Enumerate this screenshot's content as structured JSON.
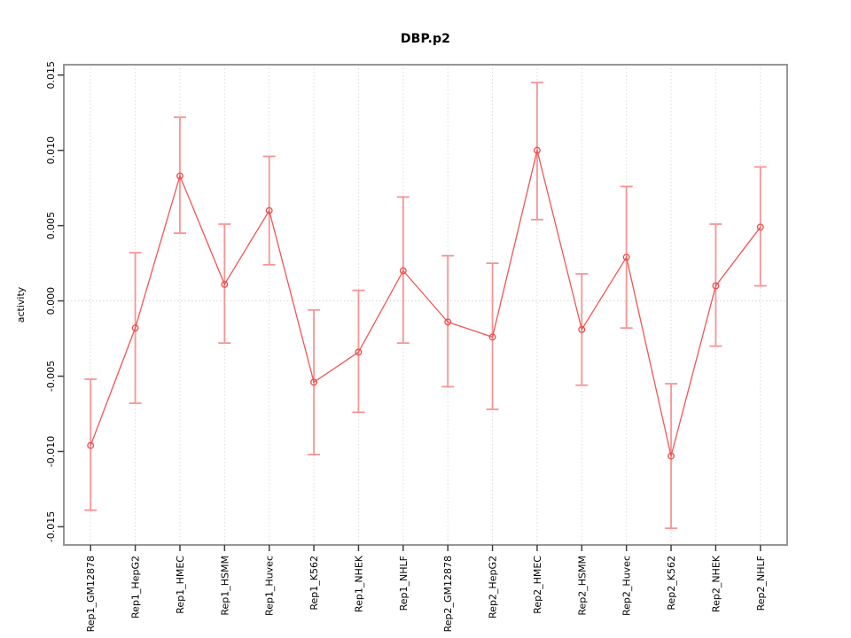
{
  "chart_data": {
    "type": "line",
    "title": "DBP.p2",
    "xlabel": "",
    "ylabel": "activity",
    "legend": "none",
    "grid": "vertical dotted gridline at each category; dotted horizontal line at y=0",
    "categories": [
      "Rep1_GM12878",
      "Rep1_HepG2",
      "Rep1_HMEC",
      "Rep1_HSMM",
      "Rep1_Huvec",
      "Rep1_K562",
      "Rep1_NHEK",
      "Rep1_NHLF",
      "Rep2_GM12878",
      "Rep2_HepG2",
      "Rep2_HMEC",
      "Rep2_HSMM",
      "Rep2_Huvec",
      "Rep2_K562",
      "Rep2_NHEK",
      "Rep2_NHLF"
    ],
    "series": [
      {
        "name": "activity",
        "values": [
          -0.0096,
          -0.0018,
          0.0083,
          0.0011,
          0.006,
          -0.0054,
          -0.0034,
          0.002,
          -0.0014,
          -0.0024,
          0.01,
          -0.0019,
          0.0029,
          -0.0103,
          0.001,
          0.0049
        ],
        "error_low": [
          -0.0139,
          -0.0068,
          0.0045,
          -0.0028,
          0.0024,
          -0.0102,
          -0.0074,
          -0.0028,
          -0.0057,
          -0.0072,
          0.0054,
          -0.0056,
          -0.0018,
          -0.0151,
          -0.003,
          0.001
        ],
        "error_high": [
          -0.0052,
          0.0032,
          0.0122,
          0.0051,
          0.0096,
          -0.0006,
          0.0007,
          0.0069,
          0.003,
          0.0025,
          0.0145,
          0.0018,
          0.0076,
          -0.0055,
          0.0051,
          0.0089
        ]
      }
    ],
    "ylim": [
      -0.01621,
      0.01569
    ],
    "yticks": [
      -0.015,
      -0.01,
      -0.005,
      0.0,
      0.005,
      0.01,
      0.015
    ],
    "ytick_labels": [
      "-0.015",
      "-0.010",
      "-0.005",
      "0.000",
      "0.005",
      "0.010",
      "0.015"
    ]
  },
  "colors": {
    "line": "#f25555",
    "error_bar": "#f79494",
    "point_stroke": "#f04b4b",
    "box": "#969696",
    "tick": "#404040",
    "grid_vertical": "#dcdcdc",
    "zero_line": "#d4d4d4",
    "text": "#000000",
    "background": "#ffffff"
  }
}
